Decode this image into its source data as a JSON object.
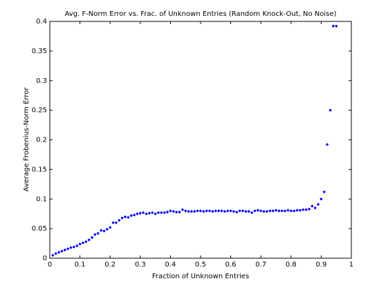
{
  "chart_data": {
    "type": "scatter",
    "title": "Avg. F-Norm Error vs. Frac. of Unknown Entries (Random Knock-Out, No Noise)",
    "xlabel": "Fraction of Unknown Entries",
    "ylabel": "Average Frobenius-Norm Error",
    "xlim": [
      0,
      1
    ],
    "xticks": [
      0,
      0.1,
      0.2,
      0.3,
      0.4,
      0.5,
      0.6,
      0.7,
      0.8,
      0.9,
      1
    ],
    "ylim": [
      0,
      0.4
    ],
    "yticks": [
      0,
      0.05,
      0.1,
      0.15,
      0.2,
      0.25,
      0.3,
      0.35,
      0.4
    ],
    "color": "#0000ff",
    "x": [
      0.01,
      0.02,
      0.03,
      0.04,
      0.05,
      0.06,
      0.07,
      0.08,
      0.09,
      0.1,
      0.11,
      0.12,
      0.13,
      0.14,
      0.15,
      0.16,
      0.17,
      0.18,
      0.19,
      0.2,
      0.21,
      0.22,
      0.23,
      0.24,
      0.25,
      0.26,
      0.27,
      0.28,
      0.29,
      0.3,
      0.31,
      0.32,
      0.33,
      0.34,
      0.35,
      0.36,
      0.37,
      0.38,
      0.39,
      0.4,
      0.41,
      0.42,
      0.43,
      0.44,
      0.45,
      0.46,
      0.47,
      0.48,
      0.49,
      0.5,
      0.51,
      0.52,
      0.53,
      0.54,
      0.55,
      0.56,
      0.57,
      0.58,
      0.59,
      0.6,
      0.61,
      0.62,
      0.63,
      0.64,
      0.65,
      0.66,
      0.67,
      0.68,
      0.69,
      0.7,
      0.71,
      0.72,
      0.73,
      0.74,
      0.75,
      0.76,
      0.77,
      0.78,
      0.79,
      0.8,
      0.81,
      0.82,
      0.83,
      0.84,
      0.85,
      0.86,
      0.87,
      0.88,
      0.89,
      0.9,
      0.91,
      0.92,
      0.93,
      0.94,
      0.95
    ],
    "values": [
      0.005,
      0.008,
      0.01,
      0.012,
      0.014,
      0.016,
      0.018,
      0.019,
      0.021,
      0.024,
      0.026,
      0.028,
      0.031,
      0.035,
      0.04,
      0.042,
      0.047,
      0.046,
      0.049,
      0.052,
      0.06,
      0.06,
      0.064,
      0.068,
      0.07,
      0.069,
      0.072,
      0.073,
      0.075,
      0.076,
      0.077,
      0.075,
      0.076,
      0.077,
      0.075,
      0.077,
      0.077,
      0.077,
      0.078,
      0.08,
      0.079,
      0.078,
      0.078,
      0.082,
      0.08,
      0.079,
      0.079,
      0.079,
      0.08,
      0.08,
      0.079,
      0.08,
      0.08,
      0.079,
      0.08,
      0.08,
      0.08,
      0.079,
      0.08,
      0.08,
      0.079,
      0.078,
      0.08,
      0.08,
      0.079,
      0.079,
      0.077,
      0.08,
      0.081,
      0.08,
      0.079,
      0.079,
      0.08,
      0.08,
      0.081,
      0.08,
      0.08,
      0.08,
      0.081,
      0.08,
      0.08,
      0.081,
      0.081,
      0.082,
      0.082,
      0.083,
      0.088,
      0.085,
      0.091,
      0.1,
      0.112,
      0.192,
      0.25,
      0.392,
      0.392
    ]
  }
}
